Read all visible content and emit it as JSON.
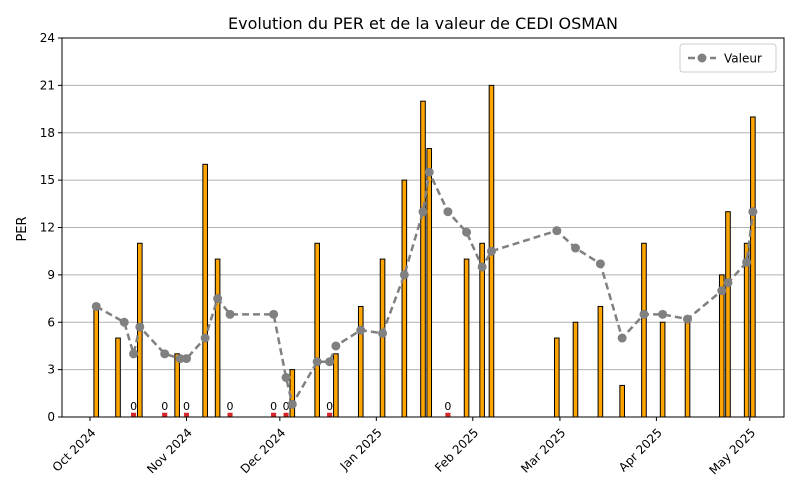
{
  "chart_data": {
    "type": "bar",
    "title": "Evolution du PER et de la valeur de CEDI OSMAN",
    "ylabel": "PER",
    "xlabel": "",
    "ylim": [
      0,
      24
    ],
    "yticks": [
      0,
      3,
      6,
      9,
      12,
      15,
      18,
      21,
      24
    ],
    "xlim": [
      "2024-09-22",
      "2025-05-12"
    ],
    "xticks": [
      {
        "date": "2024-10-01",
        "label": "Oct 2024"
      },
      {
        "date": "2024-11-01",
        "label": "Nov 2024"
      },
      {
        "date": "2024-12-01",
        "label": "Dec 2024"
      },
      {
        "date": "2025-01-01",
        "label": "Jan 2025"
      },
      {
        "date": "2025-02-01",
        "label": "Feb 2025"
      },
      {
        "date": "2025-03-01",
        "label": "Mar 2025"
      },
      {
        "date": "2025-04-01",
        "label": "Apr 2025"
      },
      {
        "date": "2025-05-01",
        "label": "May 2025"
      }
    ],
    "grid": "horizontal",
    "legend": {
      "position": "top-right",
      "entries": [
        "Valeur"
      ]
    },
    "colors": {
      "bar": "#FFA500",
      "zero_bar": "#D62728",
      "line": "#808080",
      "edge": "#000000",
      "grid": "#B0B0B0"
    },
    "bars": [
      {
        "date": "2024-10-03",
        "value": 7
      },
      {
        "date": "2024-10-10",
        "value": 5
      },
      {
        "date": "2024-10-15",
        "value": 0,
        "label": "0"
      },
      {
        "date": "2024-10-17",
        "value": 11
      },
      {
        "date": "2024-10-25",
        "value": 0,
        "label": "0"
      },
      {
        "date": "2024-10-29",
        "value": 4
      },
      {
        "date": "2024-11-01",
        "value": 0,
        "label": "0"
      },
      {
        "date": "2024-11-07",
        "value": 16
      },
      {
        "date": "2024-11-11",
        "value": 10
      },
      {
        "date": "2024-11-15",
        "value": 0,
        "label": "0"
      },
      {
        "date": "2024-11-29",
        "value": 0,
        "label": "0"
      },
      {
        "date": "2024-12-03",
        "value": 0,
        "label": "0"
      },
      {
        "date": "2024-12-05",
        "value": 3
      },
      {
        "date": "2024-12-13",
        "value": 11
      },
      {
        "date": "2024-12-17",
        "value": 0,
        "label": "0"
      },
      {
        "date": "2024-12-19",
        "value": 4
      },
      {
        "date": "2024-12-27",
        "value": 7
      },
      {
        "date": "2025-01-03",
        "value": 10
      },
      {
        "date": "2025-01-10",
        "value": 15
      },
      {
        "date": "2025-01-16",
        "value": 20
      },
      {
        "date": "2025-01-18",
        "value": 17
      },
      {
        "date": "2025-01-24",
        "value": 0,
        "label": "0"
      },
      {
        "date": "2025-01-30",
        "value": 10
      },
      {
        "date": "2025-02-04",
        "value": 11
      },
      {
        "date": "2025-02-07",
        "value": 21
      },
      {
        "date": "2025-02-28",
        "value": 5
      },
      {
        "date": "2025-03-06",
        "value": 6
      },
      {
        "date": "2025-03-14",
        "value": 7
      },
      {
        "date": "2025-03-21",
        "value": 2
      },
      {
        "date": "2025-03-28",
        "value": 11
      },
      {
        "date": "2025-04-03",
        "value": 6
      },
      {
        "date": "2025-04-11",
        "value": 6
      },
      {
        "date": "2025-04-22",
        "value": 9
      },
      {
        "date": "2025-04-24",
        "value": 13
      },
      {
        "date": "2025-04-30",
        "value": 11
      },
      {
        "date": "2025-05-02",
        "value": 19
      }
    ],
    "series": [
      {
        "name": "Valeur",
        "type": "line",
        "style": "dashed",
        "marker": "circle",
        "points": [
          {
            "date": "2024-10-03",
            "value": 7.0
          },
          {
            "date": "2024-10-12",
            "value": 6.0
          },
          {
            "date": "2024-10-15",
            "value": 4.0
          },
          {
            "date": "2024-10-17",
            "value": 5.7
          },
          {
            "date": "2024-10-25",
            "value": 4.0
          },
          {
            "date": "2024-10-30",
            "value": 3.7
          },
          {
            "date": "2024-11-01",
            "value": 3.7
          },
          {
            "date": "2024-11-07",
            "value": 5.0
          },
          {
            "date": "2024-11-11",
            "value": 7.5
          },
          {
            "date": "2024-11-15",
            "value": 6.5
          },
          {
            "date": "2024-11-29",
            "value": 6.5
          },
          {
            "date": "2024-12-03",
            "value": 2.5
          },
          {
            "date": "2024-12-05",
            "value": 0.8
          },
          {
            "date": "2024-12-13",
            "value": 3.5
          },
          {
            "date": "2024-12-17",
            "value": 3.5
          },
          {
            "date": "2024-12-19",
            "value": 4.5
          },
          {
            "date": "2024-12-27",
            "value": 5.5
          },
          {
            "date": "2025-01-03",
            "value": 5.3
          },
          {
            "date": "2025-01-10",
            "value": 9.0
          },
          {
            "date": "2025-01-16",
            "value": 13.0
          },
          {
            "date": "2025-01-18",
            "value": 15.5
          },
          {
            "date": "2025-01-24",
            "value": 13.0
          },
          {
            "date": "2025-01-30",
            "value": 11.7
          },
          {
            "date": "2025-02-04",
            "value": 9.5
          },
          {
            "date": "2025-02-07",
            "value": 10.5
          },
          {
            "date": "2025-02-28",
            "value": 11.8
          },
          {
            "date": "2025-03-06",
            "value": 10.7
          },
          {
            "date": "2025-03-14",
            "value": 9.7
          },
          {
            "date": "2025-03-21",
            "value": 5.0
          },
          {
            "date": "2025-03-28",
            "value": 6.5
          },
          {
            "date": "2025-04-03",
            "value": 6.5
          },
          {
            "date": "2025-04-11",
            "value": 6.2
          },
          {
            "date": "2025-04-22",
            "value": 8.0
          },
          {
            "date": "2025-04-24",
            "value": 8.5
          },
          {
            "date": "2025-04-30",
            "value": 9.8
          },
          {
            "date": "2025-05-02",
            "value": 13.0
          }
        ]
      }
    ]
  }
}
